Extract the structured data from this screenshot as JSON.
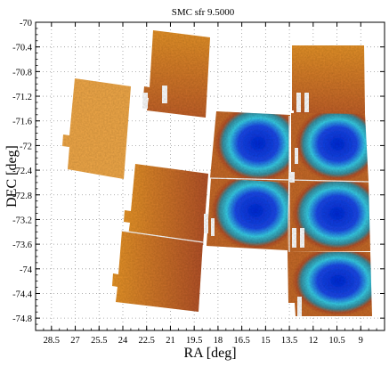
{
  "chart_data": {
    "type": "heatmap",
    "title": "SMC sfr 9.5000",
    "xlabel": "RA [deg]",
    "ylabel": "DEC [deg]",
    "xlim": [
      29.5,
      7.5
    ],
    "ylim": [
      -75.0,
      -70.0
    ],
    "x_reversed": true,
    "xticks": [
      28.5,
      27,
      25.5,
      24,
      22.5,
      21,
      19.5,
      18,
      16.5,
      15,
      13.5,
      12,
      10.5,
      9
    ],
    "xtick_labels": [
      "28.5",
      "27",
      "25.5",
      "24",
      "22.5",
      "21",
      "19.5",
      "18",
      "16.5",
      "15",
      "13.5",
      "12",
      "10.5",
      "9"
    ],
    "yticks": [
      -70,
      -70.4,
      -70.8,
      -71.2,
      -71.6,
      -72,
      -72.4,
      -72.8,
      -73.2,
      -73.6,
      -74,
      -74.4,
      -74.8
    ],
    "ytick_labels": [
      "-70",
      "-70.4",
      "-70.8",
      "-71.2",
      "-71.6",
      "-72",
      "-72.4",
      "-72.8",
      "-73.2",
      "-73.6",
      "-74",
      "-74.4",
      "-74.8"
    ],
    "grid": true,
    "colors": {
      "low": "#f2a531",
      "mid_orange": "#e8962a",
      "rust": "#b3522a",
      "cyan": "#3ad3e6",
      "blue": "#1840e0"
    },
    "tiles": [
      {
        "ra": 24.3,
        "dec": -71.75,
        "level": 0.05
      },
      {
        "ra": 20.3,
        "dec": -70.95,
        "level": 0.18
      },
      {
        "ra": 10.8,
        "dec": -71.15,
        "level": 0.22
      },
      {
        "ra": 16.4,
        "dec": -72.15,
        "level": 0.72
      },
      {
        "ra": 10.8,
        "dec": -72.35,
        "level": 0.55
      },
      {
        "ra": 21.0,
        "dec": -73.1,
        "level": 0.28
      },
      {
        "ra": 16.0,
        "dec": -73.15,
        "level": 0.9
      },
      {
        "ra": 10.9,
        "dec": -73.45,
        "level": 0.85
      },
      {
        "ra": 21.8,
        "dec": -74.25,
        "level": 0.22
      },
      {
        "ra": 10.8,
        "dec": -74.4,
        "level": 0.6
      }
    ]
  }
}
